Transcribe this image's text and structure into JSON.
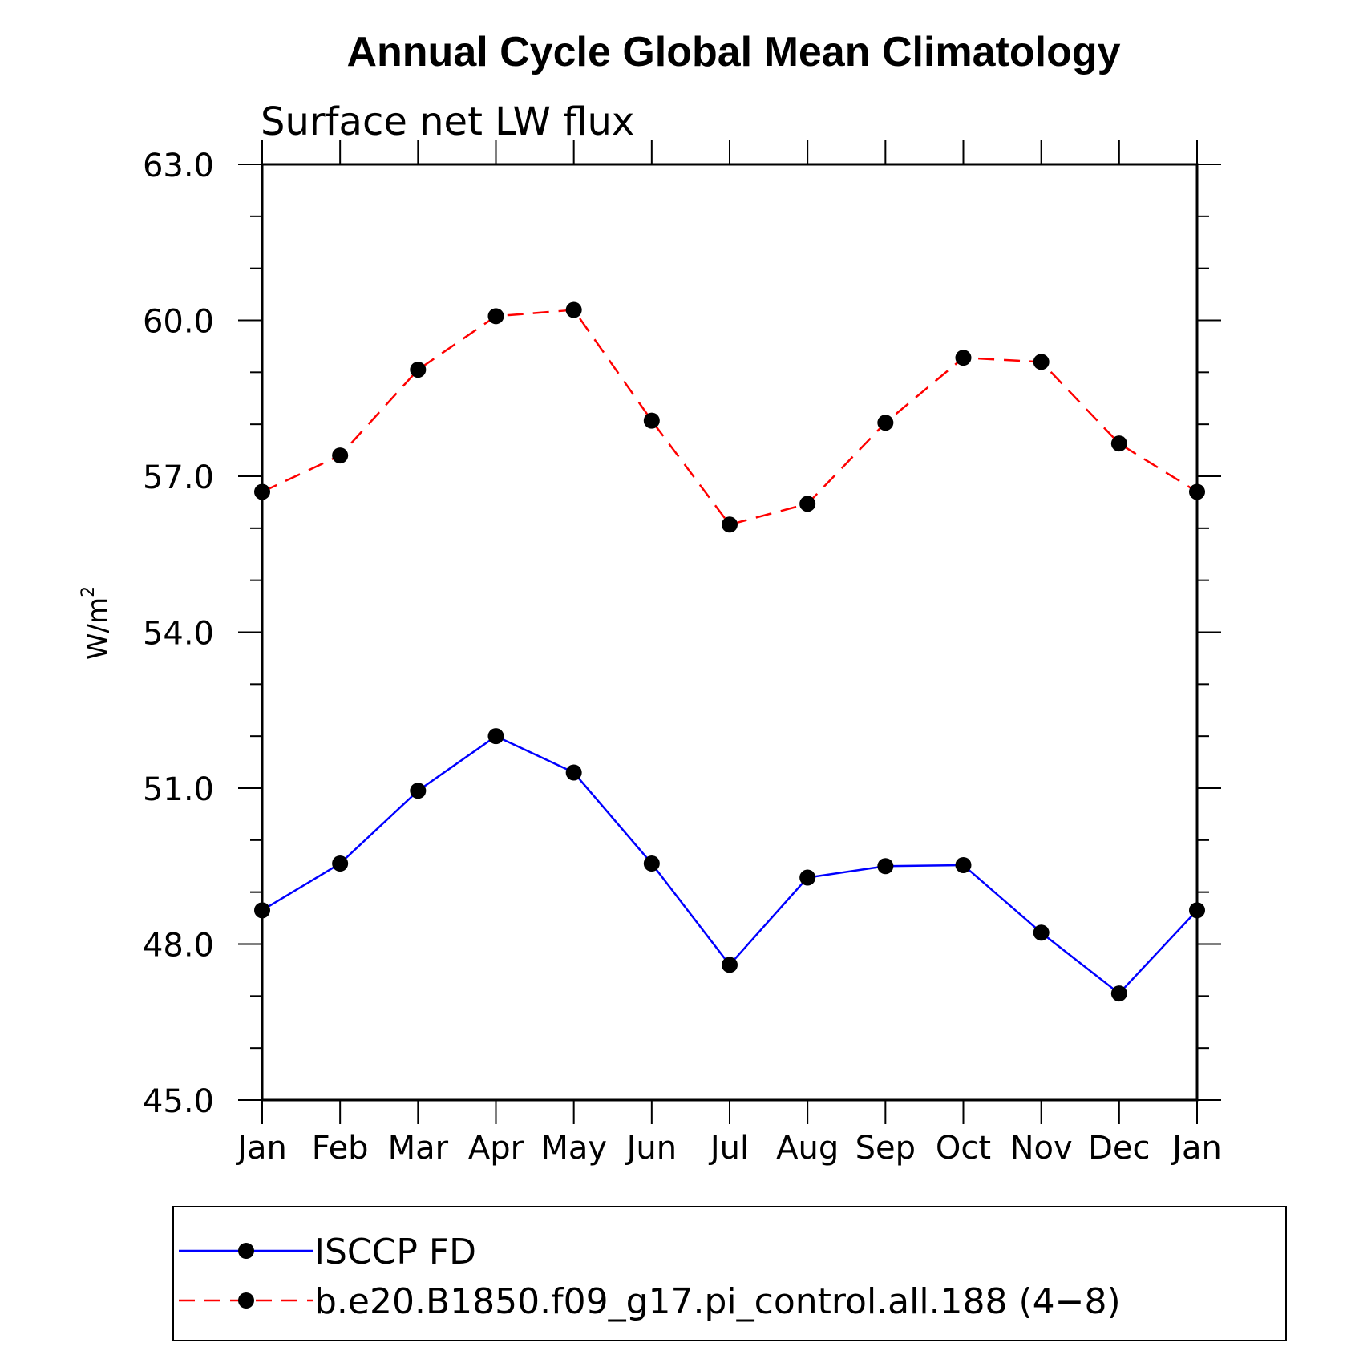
{
  "chart_data": {
    "type": "line",
    "title": "Annual Cycle Global Mean Climatology",
    "subtitle": "Surface net LW flux",
    "ylabel": "W/m",
    "ylabel_sup": "2",
    "xlabel": "",
    "categories": [
      "Jan",
      "Feb",
      "Mar",
      "Apr",
      "May",
      "Jun",
      "Jul",
      "Aug",
      "Sep",
      "Oct",
      "Nov",
      "Dec",
      "Jan"
    ],
    "ylim": [
      45.0,
      63.0
    ],
    "yticks": [
      "45.0",
      "48.0",
      "51.0",
      "54.0",
      "57.0",
      "60.0",
      "63.0"
    ],
    "grid": false,
    "legend_position": "bottom",
    "series": [
      {
        "name": "ISCCP FD",
        "color": "#0000ff",
        "dash": "solid",
        "values": [
          48.65,
          49.55,
          50.95,
          52.0,
          51.3,
          49.55,
          47.6,
          49.28,
          49.5,
          49.52,
          48.22,
          47.05,
          48.65
        ]
      },
      {
        "name": "b.e20.B1850.f09_g17.pi_control.all.188 (4−8)",
        "color": "#ff0000",
        "dash": "dashed",
        "values": [
          56.7,
          57.4,
          59.05,
          60.08,
          60.2,
          58.07,
          56.07,
          56.47,
          58.03,
          59.28,
          59.2,
          57.63,
          56.7
        ]
      }
    ]
  }
}
